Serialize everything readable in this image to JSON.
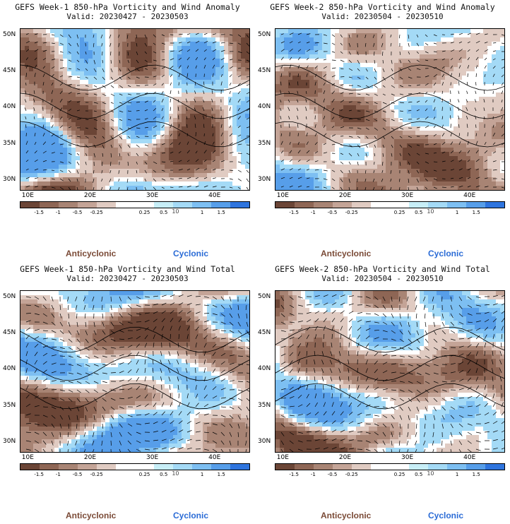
{
  "panels": [
    {
      "title": "GEFS Week-1 850-hPa Vorticity and Wind Anomaly",
      "valid": "Valid: 20230427 - 20230503",
      "type": "anomaly",
      "seed": 11
    },
    {
      "title": "GEFS Week-2 850-hPa Vorticity and Wind Anomaly",
      "valid": "Valid: 20230504 - 20230510",
      "type": "anomaly",
      "seed": 23
    },
    {
      "title": "GEFS Week-1 850-hPa Vorticity and Wind Total",
      "valid": "Valid: 20230427 - 20230503",
      "type": "total",
      "seed": 37
    },
    {
      "title": "GEFS Week-2 850-hPa Vorticity and Wind Total",
      "valid": "Valid: 20230504 - 20230510",
      "type": "total",
      "seed": 53
    }
  ],
  "labels": {
    "anticyclonic": "Anticyclonic",
    "cyclonic": "Cyclonic",
    "scale_mark": "10"
  },
  "chart_data": {
    "type": "heatmap",
    "x_ticks": [
      "10E",
      "20E",
      "30E",
      "40E"
    ],
    "y_ticks": [
      "50N",
      "45N",
      "40N",
      "35N",
      "30N"
    ],
    "xlim": [
      9,
      46
    ],
    "ylim": [
      28.5,
      51
    ],
    "colorbar_ticks": [
      "-1.5",
      "-1",
      "-0.5",
      "-0.25",
      "0.25",
      "0.5",
      "1",
      "1.5"
    ],
    "colorbar_colors": [
      "#6b4536",
      "#8e6655",
      "#a88474",
      "#c4a497",
      "#e0cbc2",
      "#ffffff",
      "#ffffff",
      "#c7eef7",
      "#a4daf6",
      "#7dbff2",
      "#579ee9",
      "#2e74de"
    ],
    "colors": {
      "anticyclonic": "#7a4a36",
      "cyclonic": "#2a6bd6"
    }
  }
}
